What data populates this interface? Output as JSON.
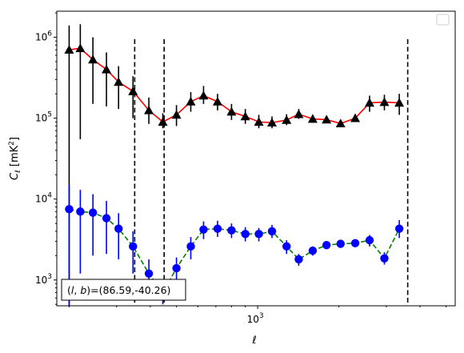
{
  "chart_data": {
    "type": "scatter",
    "xlabel": "ℓ",
    "ylabel": "C_ℓ  [mK²]",
    "xscale": "log",
    "yscale": "log",
    "xlim": [
      180,
      5400
    ],
    "ylim": [
      480,
      2100000
    ],
    "x_ticks": [
      {
        "value": 1000,
        "base": "10",
        "exp": "3"
      }
    ],
    "y_ticks": [
      {
        "value": 1000,
        "base": "10",
        "exp": "3"
      },
      {
        "value": 10000,
        "base": "10",
        "exp": "4"
      },
      {
        "value": 100000,
        "base": "10",
        "exp": "5"
      },
      {
        "value": 1000000,
        "base": "10",
        "exp": "6"
      }
    ],
    "vlines": [
      350,
      450,
      3600
    ],
    "annotation": "(l, b)=(86.59,-40.26)",
    "legend_position": "upper right",
    "series": [
      {
        "marker": "triangle",
        "marker_color": "#000000",
        "line_color": "#ff0000",
        "line_style": "solid",
        "points": [
          {
            "x": 200,
            "y": 700000,
            "lo": 480,
            "hi": 1400000
          },
          {
            "x": 220,
            "y": 730000,
            "lo": 55000,
            "hi": 1450000
          },
          {
            "x": 245,
            "y": 530000,
            "lo": 150000,
            "hi": 1000000
          },
          {
            "x": 275,
            "y": 400000,
            "lo": 140000,
            "hi": 650000
          },
          {
            "x": 305,
            "y": 280000,
            "lo": 130000,
            "hi": 440000
          },
          {
            "x": 345,
            "y": 215000,
            "lo": 100000,
            "hi": 330000
          },
          {
            "x": 395,
            "y": 125000,
            "lo": 85000,
            "hi": 180000
          },
          {
            "x": 445,
            "y": 90000,
            "lo": 75000,
            "hi": 115000
          },
          {
            "x": 500,
            "y": 110000,
            "lo": 80000,
            "hi": 145000
          },
          {
            "x": 565,
            "y": 160000,
            "lo": 120000,
            "hi": 210000
          },
          {
            "x": 630,
            "y": 190000,
            "lo": 150000,
            "hi": 250000
          },
          {
            "x": 710,
            "y": 160000,
            "lo": 125000,
            "hi": 200000
          },
          {
            "x": 800,
            "y": 120000,
            "lo": 95000,
            "hi": 150000
          },
          {
            "x": 900,
            "y": 105000,
            "lo": 85000,
            "hi": 130000
          },
          {
            "x": 1010,
            "y": 90000,
            "lo": 75000,
            "hi": 110000
          },
          {
            "x": 1130,
            "y": 88000,
            "lo": 75000,
            "hi": 105000
          },
          {
            "x": 1280,
            "y": 95000,
            "lo": 82000,
            "hi": 112000
          },
          {
            "x": 1420,
            "y": 112000,
            "lo": 98000,
            "hi": 130000
          },
          {
            "x": 1600,
            "y": 98000,
            "lo": 88000,
            "hi": 110000
          },
          {
            "x": 1800,
            "y": 96000,
            "lo": 87000,
            "hi": 106000
          },
          {
            "x": 2030,
            "y": 86000,
            "lo": 78000,
            "hi": 95000
          },
          {
            "x": 2300,
            "y": 100000,
            "lo": 90000,
            "hi": 112000
          },
          {
            "x": 2600,
            "y": 155000,
            "lo": 120000,
            "hi": 190000
          },
          {
            "x": 2950,
            "y": 158000,
            "lo": 125000,
            "hi": 195000
          },
          {
            "x": 3350,
            "y": 155000,
            "lo": 110000,
            "hi": 200000
          }
        ]
      },
      {
        "marker": "circle",
        "marker_color": "#0000ff",
        "line_color": "#008000",
        "line_style": "dashed",
        "points": [
          {
            "x": 200,
            "y": 7500,
            "lo": 480,
            "hi": 15000
          },
          {
            "x": 220,
            "y": 7000,
            "lo": 1200,
            "hi": 13000
          },
          {
            "x": 245,
            "y": 6800,
            "lo": 2000,
            "hi": 11500
          },
          {
            "x": 275,
            "y": 5800,
            "lo": 2100,
            "hi": 9500
          },
          {
            "x": 305,
            "y": 4300,
            "lo": 1800,
            "hi": 6700
          },
          {
            "x": 345,
            "y": 2600,
            "lo": 1200,
            "hi": 4000
          },
          {
            "x": 395,
            "y": 1200,
            "lo": 700,
            "hi": 1800
          },
          {
            "x": 445,
            "y": 700,
            "lo": 500,
            "hi": 950
          },
          {
            "x": 500,
            "y": 1400,
            "lo": 950,
            "hi": 1900
          },
          {
            "x": 565,
            "y": 2600,
            "lo": 1800,
            "hi": 3400
          },
          {
            "x": 630,
            "y": 4200,
            "lo": 3200,
            "hi": 5300
          },
          {
            "x": 710,
            "y": 4300,
            "lo": 3400,
            "hi": 5400
          },
          {
            "x": 800,
            "y": 4100,
            "lo": 3300,
            "hi": 5000
          },
          {
            "x": 900,
            "y": 3700,
            "lo": 3000,
            "hi": 4500
          },
          {
            "x": 1010,
            "y": 3700,
            "lo": 3000,
            "hi": 4400
          },
          {
            "x": 1130,
            "y": 4000,
            "lo": 3300,
            "hi": 4800
          },
          {
            "x": 1280,
            "y": 2600,
            "lo": 2100,
            "hi": 3100
          },
          {
            "x": 1420,
            "y": 1800,
            "lo": 1500,
            "hi": 2100
          },
          {
            "x": 1600,
            "y": 2300,
            "lo": 2000,
            "hi": 2600
          },
          {
            "x": 1800,
            "y": 2700,
            "lo": 2400,
            "hi": 3000
          },
          {
            "x": 2030,
            "y": 2800,
            "lo": 2500,
            "hi": 3100
          },
          {
            "x": 2300,
            "y": 2850,
            "lo": 2550,
            "hi": 3150
          },
          {
            "x": 2600,
            "y": 3100,
            "lo": 2600,
            "hi": 3600
          },
          {
            "x": 2950,
            "y": 1850,
            "lo": 1550,
            "hi": 2200
          },
          {
            "x": 3350,
            "y": 4300,
            "lo": 3300,
            "hi": 5500
          }
        ]
      }
    ]
  }
}
